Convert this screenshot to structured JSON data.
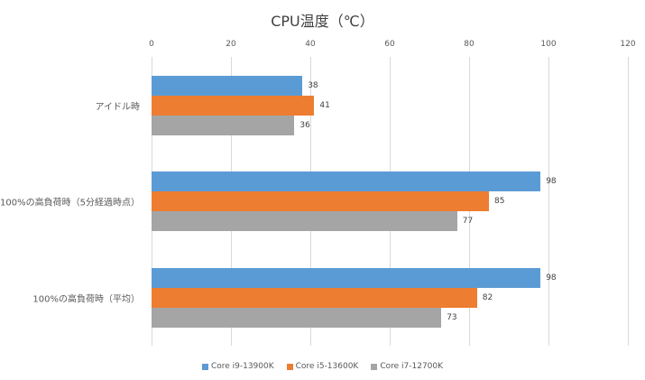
{
  "chart_data": {
    "type": "bar",
    "orientation": "horizontal",
    "title": "CPU温度（℃）",
    "xlabel": "",
    "ylabel": "",
    "xlim": [
      0,
      120
    ],
    "x_ticks": [
      "0",
      "20",
      "40",
      "60",
      "80",
      "100",
      "120"
    ],
    "grid": true,
    "legend_position": "bottom",
    "categories": [
      "アイドル時",
      "100%の高負荷時（5分経過時点）",
      "100%の高負荷時（平均）"
    ],
    "series": [
      {
        "name": "Core i9-13900K",
        "color": "#5b9bd5",
        "values": [
          38,
          98,
          98
        ]
      },
      {
        "name": "Core i5-13600K",
        "color": "#ed7d31",
        "values": [
          41,
          85,
          82
        ]
      },
      {
        "name": "Core i7-12700K",
        "color": "#a5a5a5",
        "values": [
          36,
          77,
          73
        ]
      }
    ]
  }
}
